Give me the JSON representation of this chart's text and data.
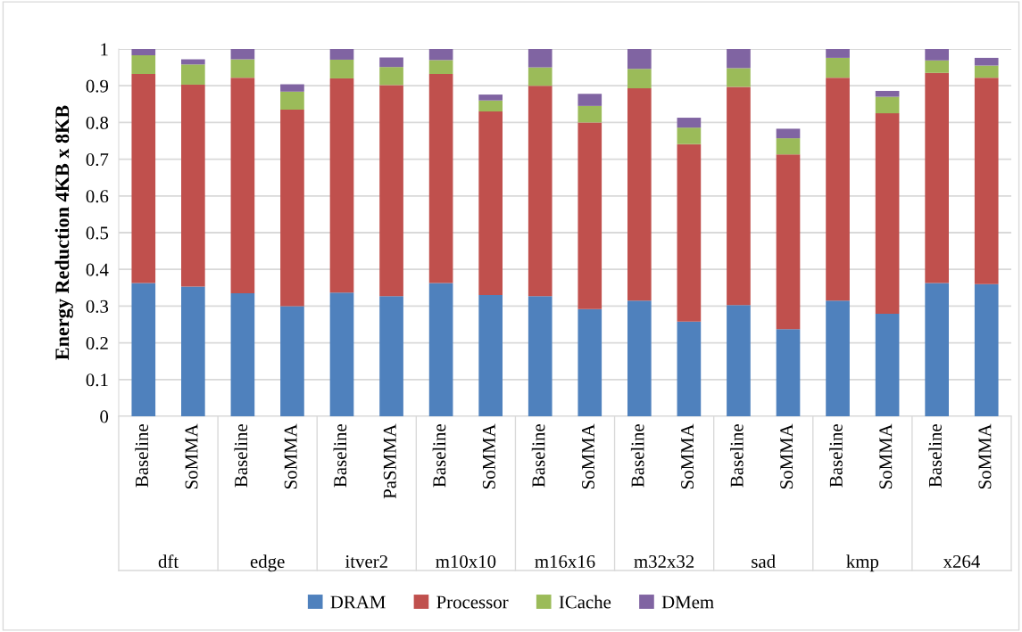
{
  "chart_data": {
    "type": "bar",
    "stacked": true,
    "ylabel": "Energy Reduction 4KB x 8KB",
    "categories": [
      "Baseline",
      "SoMMA",
      "Baseline",
      "SoMMA",
      "Baseline",
      "PaSMMA",
      "Baseline",
      "SoMMA",
      "Baseline",
      "SoMMA",
      "Baseline",
      "SoMMA",
      "Baseline",
      "SoMMA",
      "Baseline",
      "SoMMA",
      "Baseline",
      "SoMMA"
    ],
    "annotations": [
      "dft",
      "edge",
      "itver2",
      "m10x10",
      "m16x16",
      "m32x32",
      "sad",
      "kmp",
      "x264"
    ],
    "series": [
      {
        "name": "DRAM",
        "color": "#4f81bd",
        "values": [
          0.363,
          0.353,
          0.335,
          0.3,
          0.337,
          0.327,
          0.363,
          0.33,
          0.327,
          0.292,
          0.315,
          0.258,
          0.303,
          0.237,
          0.315,
          0.279,
          0.363,
          0.36
        ]
      },
      {
        "name": "Processor",
        "color": "#c0504d",
        "values": [
          0.569,
          0.55,
          0.587,
          0.535,
          0.583,
          0.575,
          0.569,
          0.5,
          0.573,
          0.508,
          0.578,
          0.483,
          0.594,
          0.476,
          0.607,
          0.546,
          0.572,
          0.562
        ]
      },
      {
        "name": "ICache",
        "color": "#9bbb59",
        "values": [
          0.051,
          0.055,
          0.05,
          0.049,
          0.051,
          0.049,
          0.038,
          0.03,
          0.05,
          0.045,
          0.053,
          0.045,
          0.051,
          0.044,
          0.054,
          0.045,
          0.034,
          0.033
        ]
      },
      {
        "name": "DMem",
        "color": "#8064a2",
        "values": [
          0.017,
          0.014,
          0.028,
          0.02,
          0.029,
          0.026,
          0.03,
          0.016,
          0.05,
          0.033,
          0.054,
          0.027,
          0.052,
          0.026,
          0.024,
          0.016,
          0.031,
          0.021
        ]
      }
    ],
    "ylim": [
      0,
      1
    ],
    "yticks": [
      0,
      0.1,
      0.2,
      0.3,
      0.4,
      0.5,
      0.6,
      0.7,
      0.8,
      0.9,
      1
    ],
    "grid": "y",
    "legend": "bottom"
  }
}
